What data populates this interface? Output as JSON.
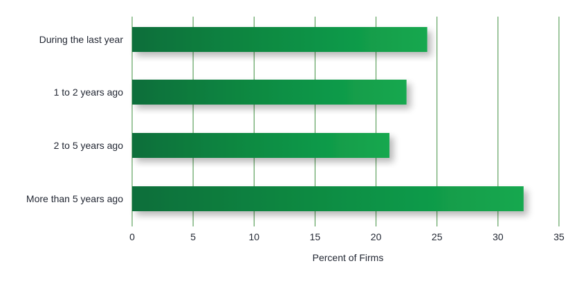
{
  "chart_data": {
    "type": "bar",
    "orientation": "horizontal",
    "categories": [
      "During the last year",
      "1 to 2 years ago",
      "2 to 5 years ago",
      "More than 5 years ago"
    ],
    "values": [
      24.2,
      22.5,
      21.1,
      32.1
    ],
    "xlabel": "Percent of Firms",
    "ylabel": "",
    "xlim": [
      0,
      35
    ],
    "x_ticks": [
      "0",
      "5",
      "10",
      "15",
      "20",
      "25",
      "30",
      "35"
    ],
    "grid": "vertical",
    "legend": "none",
    "colors": {
      "bar_start": "#0d6e3a",
      "bar_mid": "#0a8a42",
      "bar_end": "#16a84f",
      "grid": "#3f8f3f"
    }
  }
}
